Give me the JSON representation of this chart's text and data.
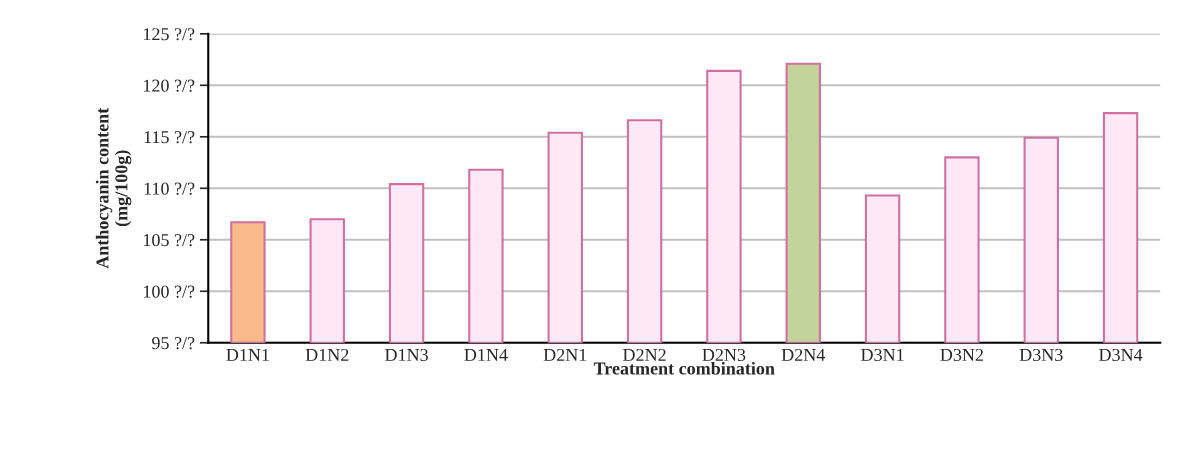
{
  "chart_data": {
    "type": "bar",
    "xlabel": "Treatment combination",
    "ylabel": "Anthocyanin content\n(mg/100g)",
    "categories": [
      "D1N1",
      "D1N2",
      "D1N3",
      "D1N4",
      "D2N1",
      "D2N2",
      "D2N3",
      "D2N4",
      "D3N1",
      "D3N2",
      "D3N3",
      "D3N4"
    ],
    "values": [
      106.7,
      107.0,
      110.4,
      111.8,
      115.4,
      116.6,
      121.4,
      122.1,
      109.3,
      113.0,
      114.9,
      117.3
    ],
    "colors": [
      "#f9b98a",
      "#ffe9f7",
      "#ffe9f7",
      "#ffe9f7",
      "#ffe9f7",
      "#ffe9f7",
      "#ffe9f7",
      "#c3d49a",
      "#ffe9f7",
      "#ffe9f7",
      "#ffe9f7",
      "#ffe9f7"
    ],
    "ylim": [
      95,
      125
    ],
    "yticks": [
      {
        "value": 95,
        "label": "95 ?/?"
      },
      {
        "value": 100,
        "label": "100 ?/?"
      },
      {
        "value": 105,
        "label": "105 ?/?"
      },
      {
        "value": 110,
        "label": "110 ?/?"
      },
      {
        "value": 115,
        "label": "115 ?/?"
      },
      {
        "value": 120,
        "label": "120 ?/?"
      },
      {
        "value": 125,
        "label": "125 ?/?"
      }
    ],
    "grid": "y"
  }
}
